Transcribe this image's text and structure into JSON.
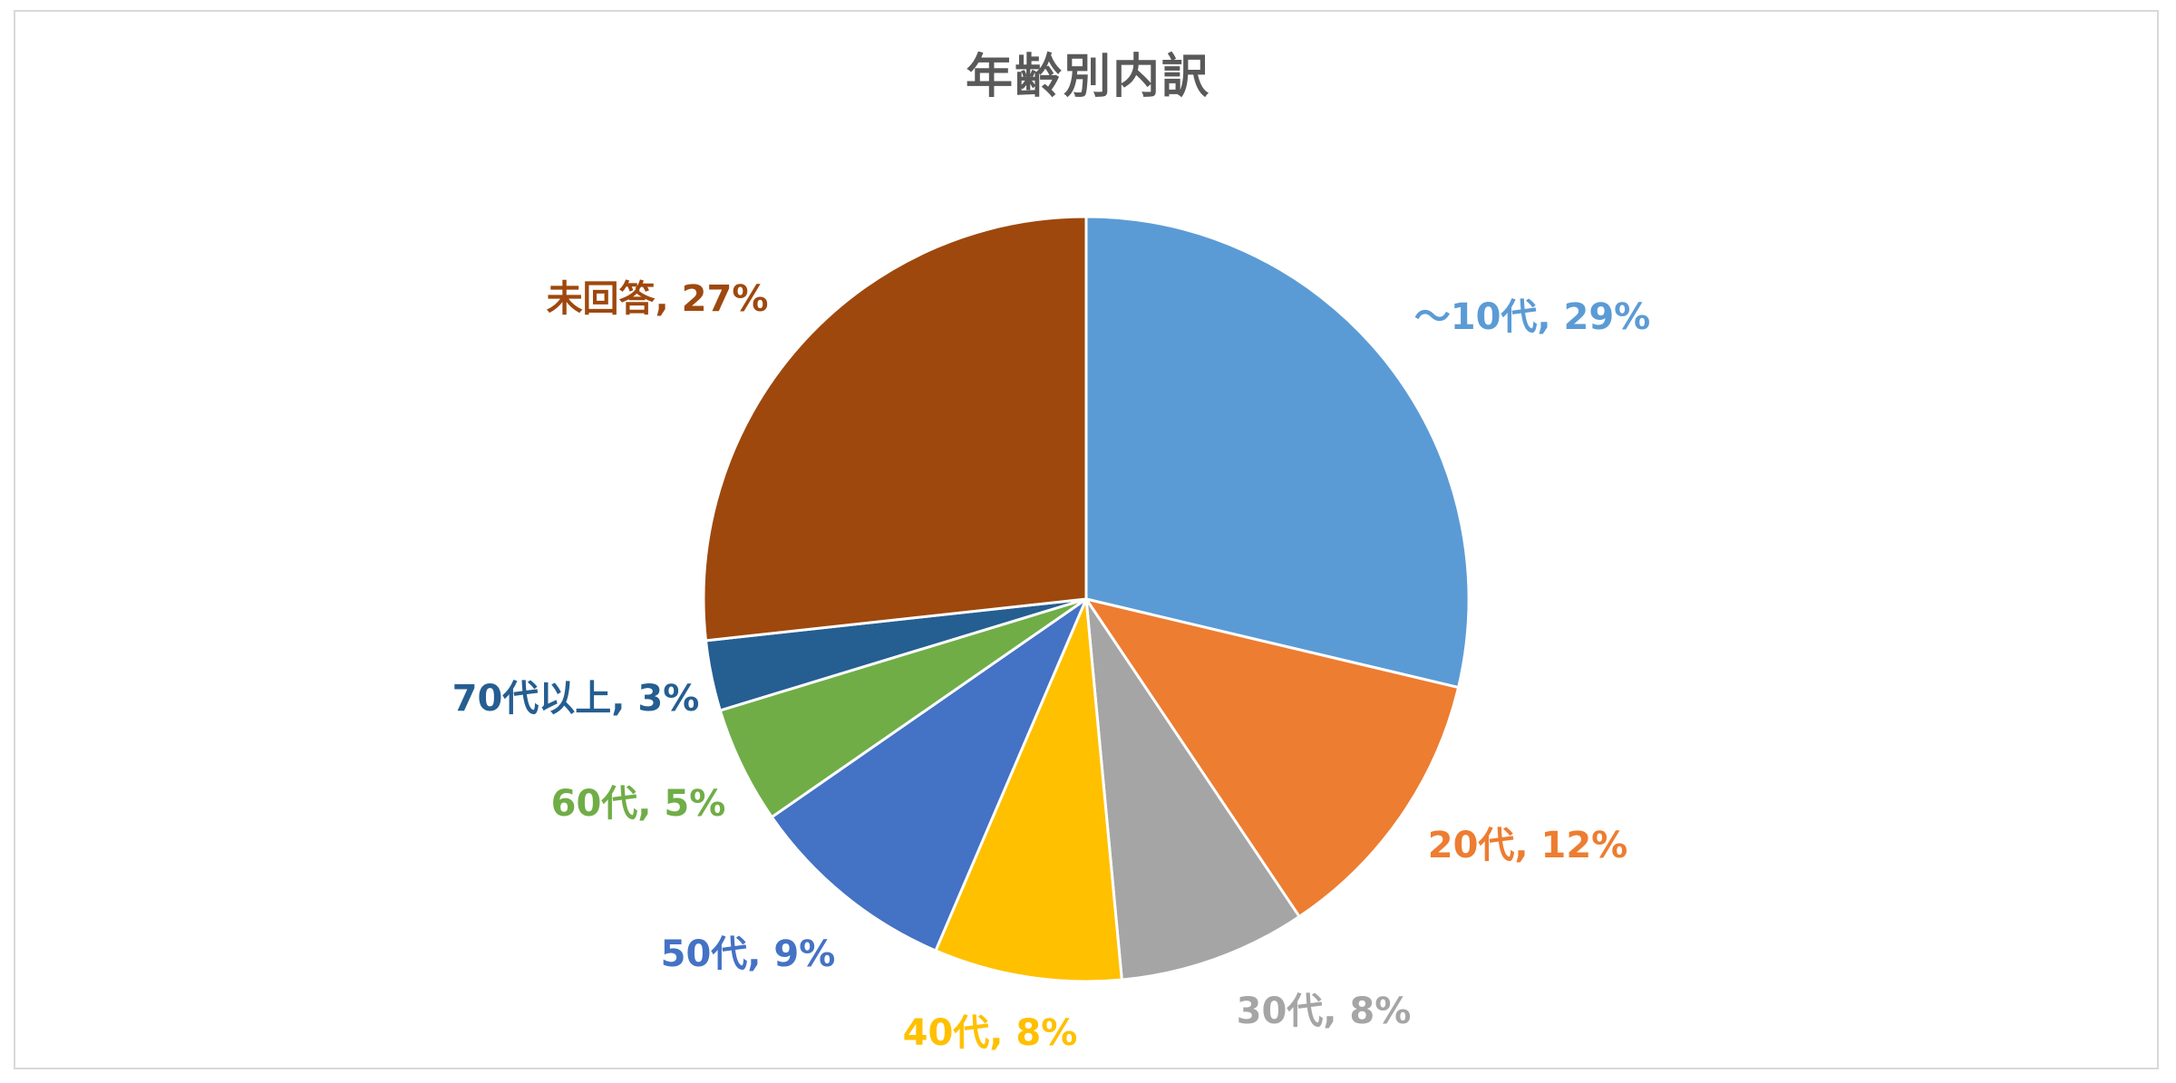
{
  "chart_data": {
    "type": "pie",
    "title": "年齢別内訳",
    "categories": [
      "～10代",
      "20代",
      "30代",
      "40代",
      "50代",
      "60代",
      "70代以上",
      "未回答"
    ],
    "values": [
      29,
      12,
      8,
      8,
      9,
      5,
      3,
      27
    ],
    "unit": "%",
    "data_labels": [
      "～10代, 29%",
      "20代, 12%",
      "30代, 8%",
      "40代, 8%",
      "50代, 9%",
      "60代, 5%",
      "70代以上, 3%",
      "未回答, 27%"
    ],
    "colors": [
      "#5b9bd5",
      "#ed7d31",
      "#a5a5a5",
      "#ffc000",
      "#4472c4",
      "#70ad47",
      "#255e91",
      "#9e480e"
    ],
    "start_angle": "12 o'clock",
    "direction": "clockwise",
    "legend": "none"
  }
}
